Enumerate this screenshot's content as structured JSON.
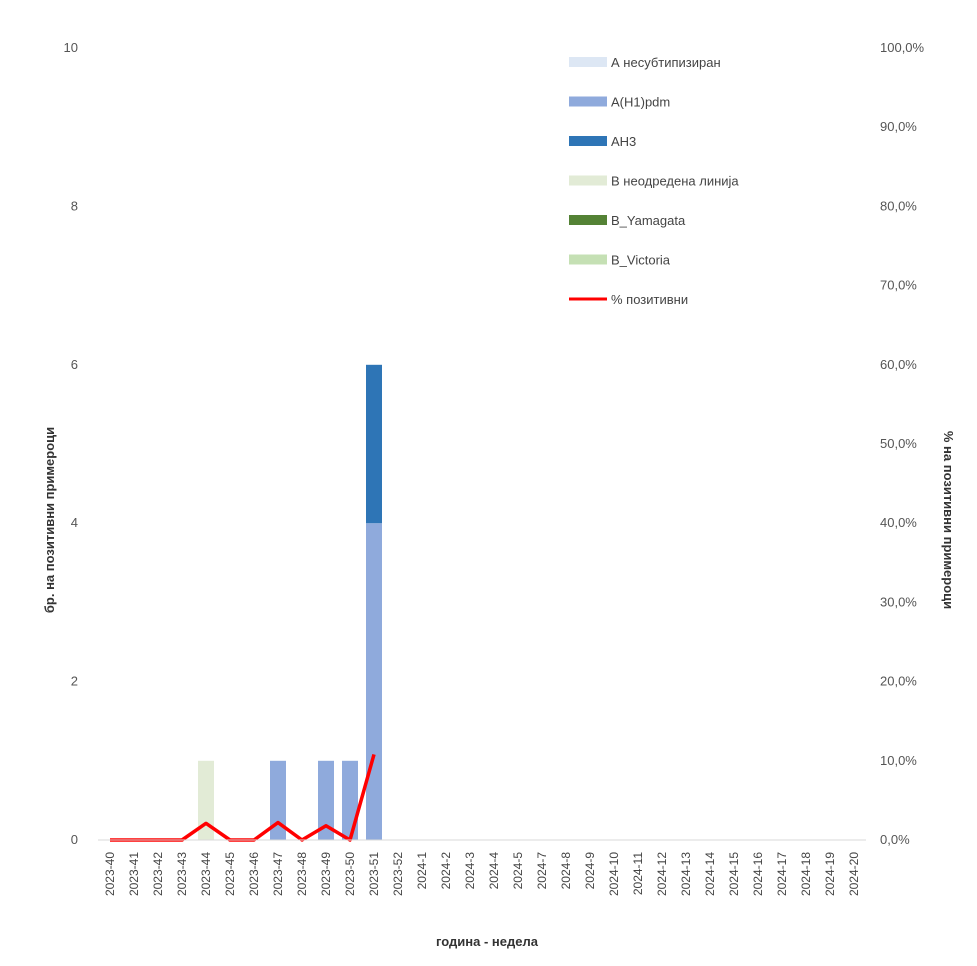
{
  "chart_data": {
    "type": "bar",
    "stacked": true,
    "categories": [
      "2023-40",
      "2023-41",
      "2023-42",
      "2023-43",
      "2023-44",
      "2023-45",
      "2023-46",
      "2023-47",
      "2023-48",
      "2023-49",
      "2023-50",
      "2023-51",
      "2023-52",
      "2024-1",
      "2024-2",
      "2024-3",
      "2024-4",
      "2024-5",
      "2024-7",
      "2024-8",
      "2024-9",
      "2024-10",
      "2024-11",
      "2024-12",
      "2024-13",
      "2024-14",
      "2024-15",
      "2024-16",
      "2024-17",
      "2024-18",
      "2024-19",
      "2024-20"
    ],
    "xlabel": "година - недела",
    "ylabel": "бр. на позитивни примероци",
    "y2label": "% на позитивни примероци",
    "ylim": [
      0,
      10
    ],
    "y_ticks": [
      "0",
      "2",
      "4",
      "6",
      "8",
      "10"
    ],
    "y2lim": [
      0,
      100
    ],
    "y2_ticks": [
      "0,0%",
      "10,0%",
      "20,0%",
      "30,0%",
      "40,0%",
      "50,0%",
      "60,0%",
      "70,0%",
      "80,0%",
      "90,0%",
      "100,0%"
    ],
    "grid": false,
    "legend_position": "top-right",
    "series": [
      {
        "name": "А несубтипизиран",
        "color": "#dde7f4",
        "values": [
          0,
          0,
          0,
          0,
          0,
          0,
          0,
          0,
          0,
          0,
          0,
          0,
          0,
          0,
          0,
          0,
          0,
          0,
          0,
          0,
          0,
          0,
          0,
          0,
          0,
          0,
          0,
          0,
          0,
          0,
          0,
          0
        ]
      },
      {
        "name": "A(H1)pdm",
        "color": "#8faadc",
        "values": [
          0,
          0,
          0,
          0,
          0,
          0,
          0,
          1,
          0,
          1,
          1,
          4,
          0,
          0,
          0,
          0,
          0,
          0,
          0,
          0,
          0,
          0,
          0,
          0,
          0,
          0,
          0,
          0,
          0,
          0,
          0,
          0
        ]
      },
      {
        "name": "AH3",
        "color": "#2e75b6",
        "values": [
          0,
          0,
          0,
          0,
          0,
          0,
          0,
          0,
          0,
          0,
          0,
          2,
          0,
          0,
          0,
          0,
          0,
          0,
          0,
          0,
          0,
          0,
          0,
          0,
          0,
          0,
          0,
          0,
          0,
          0,
          0,
          0
        ]
      },
      {
        "name": "B неодредена линија",
        "color": "#e2ebd6",
        "values": [
          0,
          0,
          0,
          0,
          1,
          0,
          0,
          0,
          0,
          0,
          0,
          0,
          0,
          0,
          0,
          0,
          0,
          0,
          0,
          0,
          0,
          0,
          0,
          0,
          0,
          0,
          0,
          0,
          0,
          0,
          0,
          0
        ]
      },
      {
        "name": "B_Yamagata",
        "color": "#548235",
        "values": [
          0,
          0,
          0,
          0,
          0,
          0,
          0,
          0,
          0,
          0,
          0,
          0,
          0,
          0,
          0,
          0,
          0,
          0,
          0,
          0,
          0,
          0,
          0,
          0,
          0,
          0,
          0,
          0,
          0,
          0,
          0,
          0
        ]
      },
      {
        "name": "B_Victoria",
        "color": "#c5e0b4",
        "values": [
          0,
          0,
          0,
          0,
          0,
          0,
          0,
          0,
          0,
          0,
          0,
          0,
          0,
          0,
          0,
          0,
          0,
          0,
          0,
          0,
          0,
          0,
          0,
          0,
          0,
          0,
          0,
          0,
          0,
          0,
          0,
          0
        ]
      }
    ],
    "line_series": {
      "name": "% позитивни",
      "color": "#ff0000",
      "axis": "y2",
      "categories": [
        "2023-40",
        "2023-41",
        "2023-42",
        "2023-43",
        "2023-44",
        "2023-45",
        "2023-46",
        "2023-47",
        "2023-48",
        "2023-49",
        "2023-50",
        "2023-51"
      ],
      "values": [
        0,
        0,
        0,
        0,
        2.1,
        0,
        0,
        2.2,
        0,
        1.8,
        0,
        10.8
      ]
    }
  }
}
